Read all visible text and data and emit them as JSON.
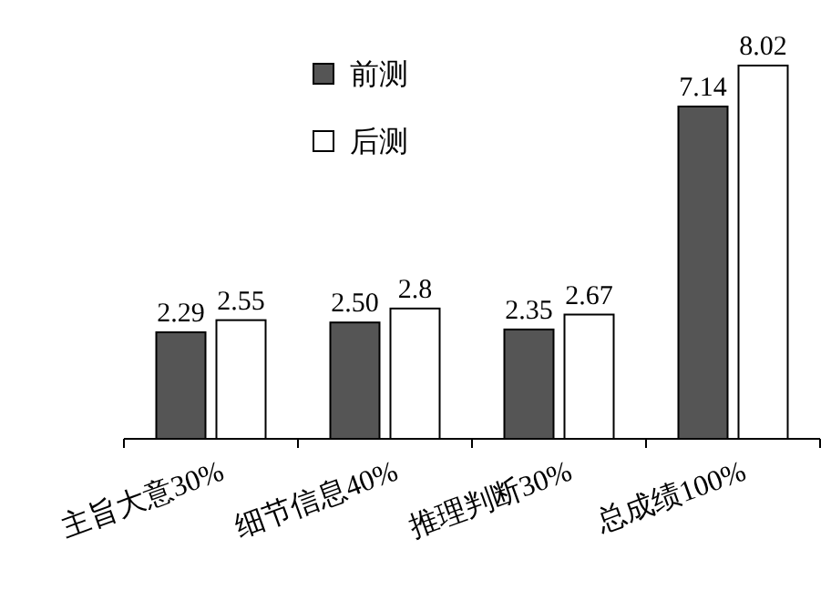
{
  "chart_data": {
    "type": "bar",
    "categories": [
      "主旨大意30%",
      "细节信息40%",
      "推理判断30%",
      "总成绩100%"
    ],
    "series": [
      {
        "name": "前测",
        "color": "#555555",
        "values": [
          2.29,
          2.5,
          2.35,
          7.14
        ],
        "value_labels": [
          "2.29",
          "2.50",
          "2.35",
          "7.14"
        ]
      },
      {
        "name": "后测",
        "color": "#ffffff",
        "values": [
          2.55,
          2.8,
          2.67,
          8.02
        ],
        "value_labels": [
          "2.55",
          "2.8",
          "2.67",
          "8.02"
        ]
      }
    ],
    "legend": "top"
  }
}
